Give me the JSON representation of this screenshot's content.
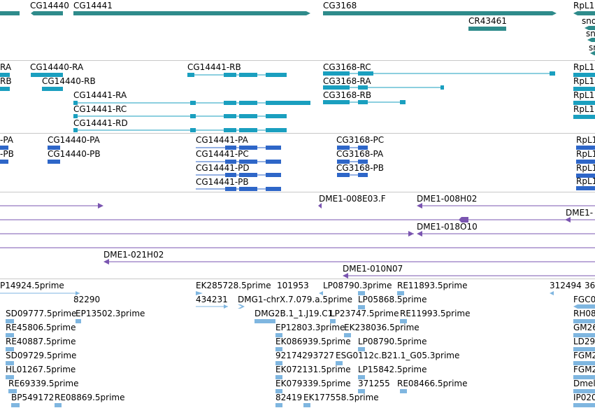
{
  "colors": {
    "gene": "#2e8b8b",
    "transcript": "#1a9fbf",
    "protein": "#2e66c8",
    "clone": "#7a55b0",
    "est": "#7fb6e0",
    "separator": "#c8c8c8"
  },
  "tracks": {
    "genes": [
      {
        "label": "CG14440"
      },
      {
        "label": "CG14441"
      },
      {
        "label": "CG3168"
      },
      {
        "label": "CR43461"
      },
      {
        "label": "RpL1"
      },
      {
        "label": "sno"
      },
      {
        "label": "sn"
      },
      {
        "label": "sn"
      }
    ],
    "transcripts": [
      {
        "label": "RA"
      },
      {
        "label": "RB"
      },
      {
        "label": "CG14440-RA"
      },
      {
        "label": "CG14440-RB"
      },
      {
        "label": "CG14441-RB"
      },
      {
        "label": "CG14441-RA"
      },
      {
        "label": "CG14441-RC"
      },
      {
        "label": "CG14441-RD"
      },
      {
        "label": "CG3168-RC"
      },
      {
        "label": "CG3168-RA"
      },
      {
        "label": "CG3168-RB"
      },
      {
        "label": "RpL1"
      },
      {
        "label": "RpL1"
      },
      {
        "label": "RpL1"
      },
      {
        "label": "RpL1"
      }
    ],
    "proteins": [
      {
        "label": "-PA"
      },
      {
        "label": "-PB"
      },
      {
        "label": "CG14440-PA"
      },
      {
        "label": "CG14440-PB"
      },
      {
        "label": "CG14441-PA"
      },
      {
        "label": "CG14441-PC"
      },
      {
        "label": "CG14441-PD"
      },
      {
        "label": "CG14441-PB"
      },
      {
        "label": "CG3168-PC"
      },
      {
        "label": "CG3168-PA"
      },
      {
        "label": "CG3168-PB"
      },
      {
        "label": "RpL1"
      },
      {
        "label": "RpL1"
      },
      {
        "label": "RpL1"
      },
      {
        "label": "RpL1"
      }
    ],
    "clones": [
      {
        "label": "DME1-008E03.F"
      },
      {
        "label": "DME1-008H02"
      },
      {
        "label": "DME1-"
      },
      {
        "label": "DME1-018O10"
      },
      {
        "label": "DME1-021H02"
      },
      {
        "label": "DME1-010N07"
      }
    ],
    "ests": [
      {
        "label": "P14924.5prime"
      },
      {
        "label": "82290"
      },
      {
        "label": "EK285728.5prime"
      },
      {
        "label": "101953"
      },
      {
        "label": "LP08790.3prime"
      },
      {
        "label": "RE11893.5prime"
      },
      {
        "label": "312494"
      },
      {
        "label": "36"
      },
      {
        "label": "434231"
      },
      {
        "label": "DMG1-chrX.7.079.a.5prime"
      },
      {
        "label": "LP05868.5prime"
      },
      {
        "label": "FGC0"
      },
      {
        "label": "SD09777.5prime"
      },
      {
        "label": "EP13502.3prime"
      },
      {
        "label": "DMG2B.1_1.J19.C1"
      },
      {
        "label": "LP23747.5prime"
      },
      {
        "label": "RE11993.5prime"
      },
      {
        "label": "RH08"
      },
      {
        "label": "RE45806.5prime"
      },
      {
        "label": "EP12803.3prime"
      },
      {
        "label": "EK238036.5prime"
      },
      {
        "label": "GM26"
      },
      {
        "label": "RE40887.5prime"
      },
      {
        "label": "EK086939.5prime"
      },
      {
        "label": "LP08790.5prime"
      },
      {
        "label": "LD29"
      },
      {
        "label": "SD09729.5prime"
      },
      {
        "label": "92174293727"
      },
      {
        "label": "ESG0112c.B21.1_G05.3prime"
      },
      {
        "label": "FGM2"
      },
      {
        "label": "HL01267.5prime"
      },
      {
        "label": "EK072131.5prime"
      },
      {
        "label": "LP15842.5prime"
      },
      {
        "label": "FGM2"
      },
      {
        "label": "RE69339.5prime"
      },
      {
        "label": "EK079339.5prime"
      },
      {
        "label": "371255"
      },
      {
        "label": "RE08466.5prime"
      },
      {
        "label": "Dmel"
      },
      {
        "label": "BP549172"
      },
      {
        "label": "RE08869.5prime"
      },
      {
        "label": "82419"
      },
      {
        "label": "EK177558.5prime"
      },
      {
        "label": "IP020"
      }
    ]
  }
}
